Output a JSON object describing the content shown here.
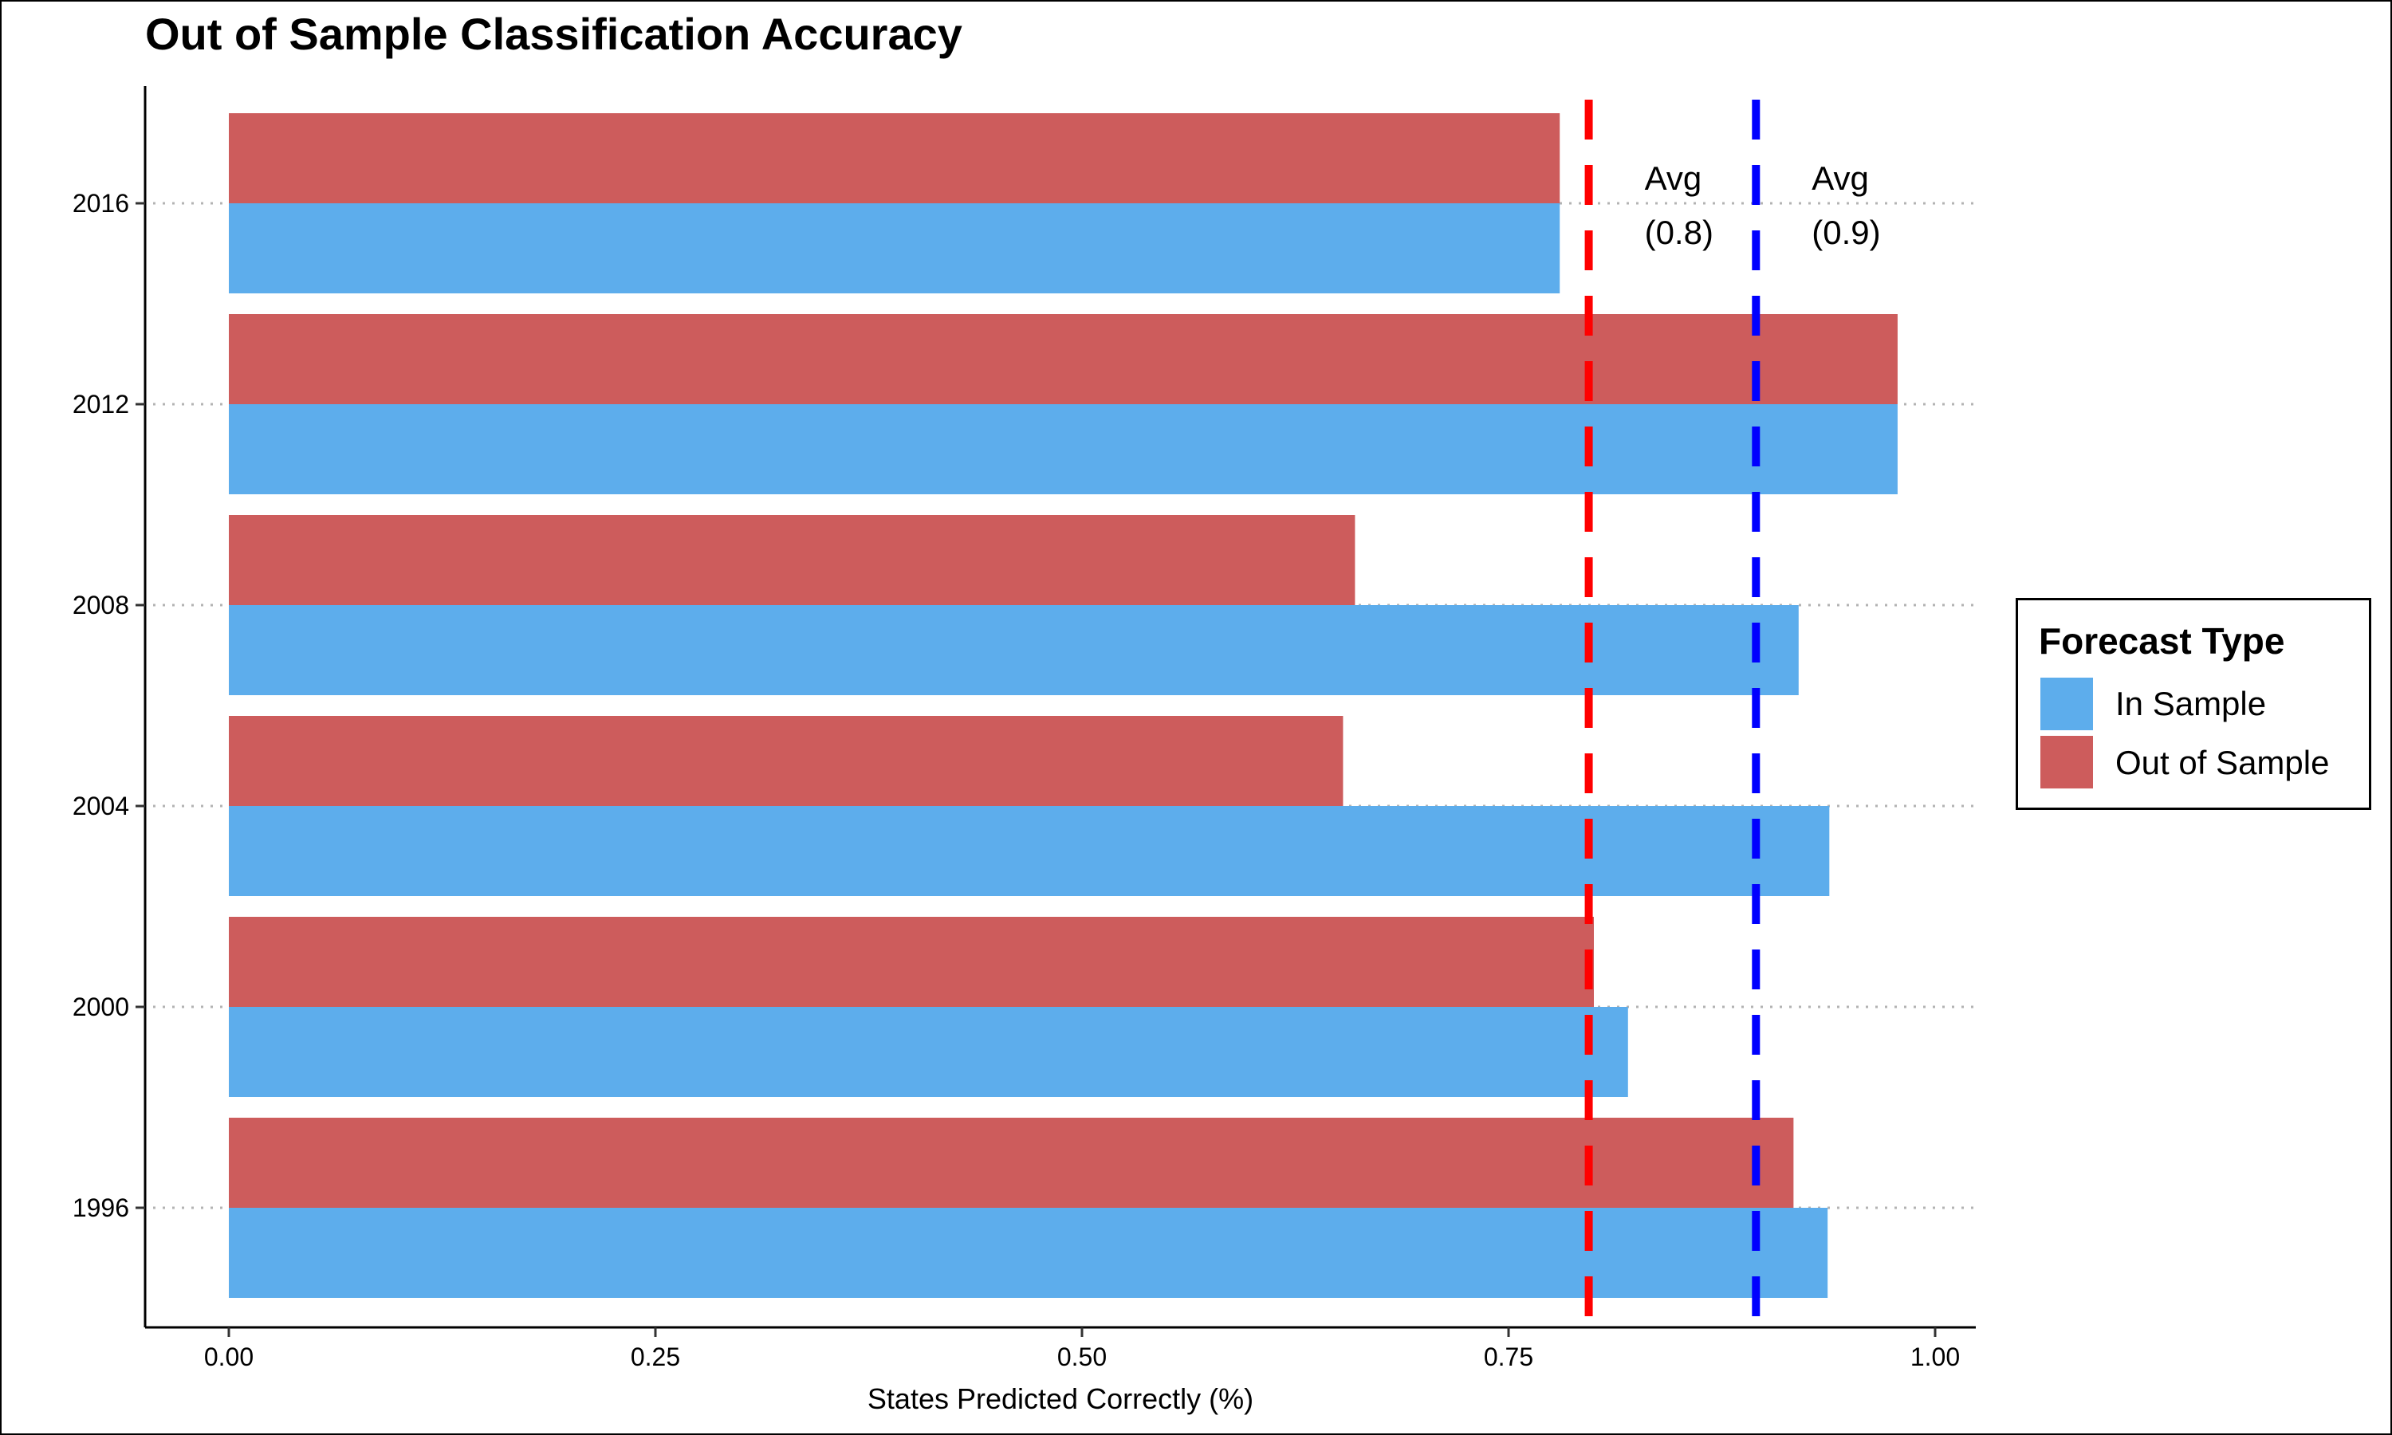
{
  "chart_data": {
    "type": "bar",
    "orientation": "horizontal",
    "title": "Out of Sample Classification Accuracy",
    "xlabel": "States Predicted Correctly (%)",
    "ylabel": "",
    "xlim": [
      0,
      1
    ],
    "x_ticks": [
      "0.00",
      "0.25",
      "0.50",
      "0.75",
      "1.00"
    ],
    "x_tick_values": [
      0,
      0.25,
      0.5,
      0.75,
      1.0
    ],
    "categories": [
      "1996",
      "2000",
      "2004",
      "2008",
      "2012",
      "2016"
    ],
    "series": [
      {
        "name": "In Sample",
        "color": "#5DADEC",
        "values": [
          0.937,
          0.82,
          0.938,
          0.92,
          0.978,
          0.78
        ]
      },
      {
        "name": "Out of Sample",
        "color": "#CD5C5C",
        "values": [
          0.917,
          0.8,
          0.653,
          0.66,
          0.978,
          0.78
        ]
      }
    ],
    "reference_lines": [
      {
        "value": 0.797,
        "color": "#FF0000",
        "style": "dashed",
        "label_line1": "Avg",
        "label_line2": "(0.8)"
      },
      {
        "value": 0.895,
        "color": "#0000FF",
        "style": "dashed",
        "label_line1": "Avg",
        "label_line2": "(0.9)"
      }
    ],
    "grid": "dotted horizontal at categories",
    "legend": {
      "title": "Forecast Type",
      "position": "right"
    }
  }
}
